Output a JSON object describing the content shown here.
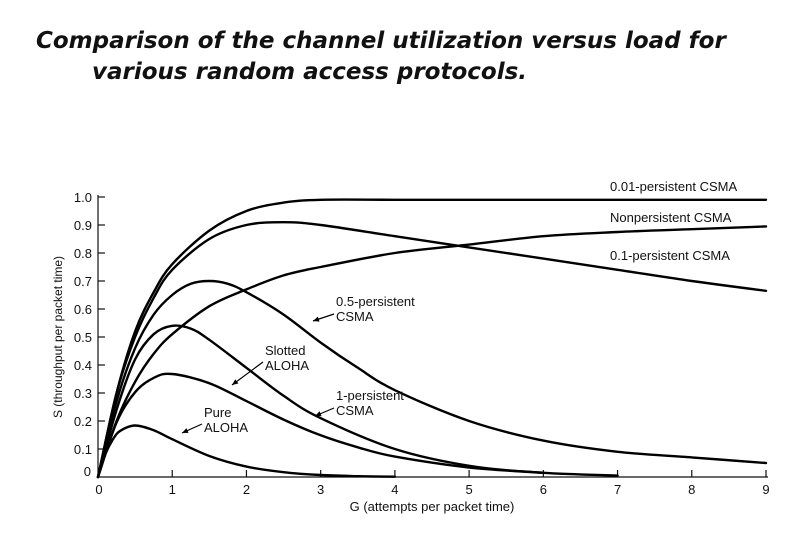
{
  "heading": {
    "line1": "Comparison of the channel utilization versus load for",
    "line2": "various random access protocols."
  },
  "chart_data": {
    "type": "line",
    "xlabel": "G (attempts per packet time)",
    "ylabel": "S (throughput per packet time)",
    "xlim": [
      0,
      9
    ],
    "ylim": [
      0,
      1.0
    ],
    "x_ticks": [
      0,
      1,
      2,
      3,
      4,
      5,
      6,
      7,
      8,
      9
    ],
    "y_ticks": [
      0,
      0.1,
      0.2,
      0.3,
      0.4,
      0.5,
      0.6,
      0.7,
      0.8,
      0.9,
      1.0
    ],
    "x_tick_labels": [
      "0",
      "1",
      "2",
      "3",
      "4",
      "5",
      "6",
      "7",
      "8",
      "9"
    ],
    "y_tick_labels": [
      "0",
      "0.1",
      "0.2",
      "0.3",
      "0.4",
      "0.5",
      "0.6",
      "0.7",
      "0.8",
      "0.9",
      "1.0"
    ],
    "grid": false,
    "series": [
      {
        "name": "Pure ALOHA",
        "x": [
          0,
          0.1,
          0.2,
          0.3,
          0.5,
          0.75,
          1,
          1.5,
          2,
          2.5,
          3,
          3.5,
          4
        ],
        "y": [
          0,
          0.082,
          0.134,
          0.165,
          0.184,
          0.167,
          0.135,
          0.075,
          0.037,
          0.017,
          0.007,
          0.003,
          0.001
        ]
      },
      {
        "name": "Slotted ALOHA",
        "x": [
          0,
          0.25,
          0.5,
          0.75,
          1,
          1.5,
          2,
          2.5,
          3,
          3.5,
          4,
          5,
          6
        ],
        "y": [
          0,
          0.195,
          0.303,
          0.354,
          0.368,
          0.335,
          0.271,
          0.205,
          0.149,
          0.106,
          0.073,
          0.034,
          0.015
        ]
      },
      {
        "name": "1-persistent CSMA",
        "x": [
          0,
          0.25,
          0.5,
          0.75,
          1,
          1.25,
          1.5,
          2,
          2.5,
          3,
          4,
          5,
          6,
          7
        ],
        "y": [
          0,
          0.24,
          0.42,
          0.51,
          0.54,
          0.53,
          0.49,
          0.39,
          0.29,
          0.21,
          0.1,
          0.04,
          0.015,
          0.005
        ]
      },
      {
        "name": "0.5-persistent CSMA",
        "x": [
          0,
          0.25,
          0.5,
          0.75,
          1,
          1.25,
          1.5,
          1.75,
          2,
          2.5,
          3,
          3.5,
          4,
          5,
          6,
          7,
          8,
          9
        ],
        "y": [
          0,
          0.27,
          0.46,
          0.58,
          0.65,
          0.69,
          0.7,
          0.69,
          0.66,
          0.58,
          0.48,
          0.39,
          0.31,
          0.2,
          0.13,
          0.09,
          0.07,
          0.05
        ]
      },
      {
        "name": "0.1-persistent CSMA",
        "x": [
          0,
          0.25,
          0.5,
          0.75,
          1,
          1.5,
          2,
          2.5,
          3,
          4,
          5,
          6,
          7,
          8,
          9
        ],
        "y": [
          0,
          0.2,
          0.34,
          0.44,
          0.51,
          0.61,
          0.67,
          0.72,
          0.75,
          0.8,
          0.83,
          0.86,
          0.875,
          0.885,
          0.895
        ]
      },
      {
        "name": "Nonpersistent CSMA",
        "x": [
          0,
          0.25,
          0.5,
          0.75,
          1,
          1.5,
          2,
          2.5,
          3,
          4,
          5,
          6,
          7,
          8,
          9
        ],
        "y": [
          0,
          0.3,
          0.5,
          0.64,
          0.74,
          0.85,
          0.9,
          0.91,
          0.9,
          0.86,
          0.82,
          0.78,
          0.74,
          0.7,
          0.665
        ]
      },
      {
        "name": "0.01-persistent CSMA",
        "x": [
          0,
          0.25,
          0.5,
          0.75,
          1,
          1.5,
          2,
          2.5,
          3,
          4,
          5,
          6,
          7,
          8,
          9
        ],
        "y": [
          0,
          0.3,
          0.52,
          0.66,
          0.76,
          0.88,
          0.95,
          0.98,
          0.99,
          0.99,
          0.99,
          0.99,
          0.99,
          0.99,
          0.99
        ]
      }
    ],
    "annotations": [
      {
        "lines": [
          "0.01-persistent CSMA"
        ]
      },
      {
        "lines": [
          "Nonpersistent CSMA"
        ]
      },
      {
        "lines": [
          "0.1-persistent CSMA"
        ]
      },
      {
        "lines": [
          "0.5-persistent",
          "CSMA"
        ]
      },
      {
        "lines": [
          "Slotted",
          "ALOHA"
        ]
      },
      {
        "lines": [
          "1-persistent",
          "CSMA"
        ]
      },
      {
        "lines": [
          "Pure",
          "ALOHA"
        ]
      }
    ]
  }
}
